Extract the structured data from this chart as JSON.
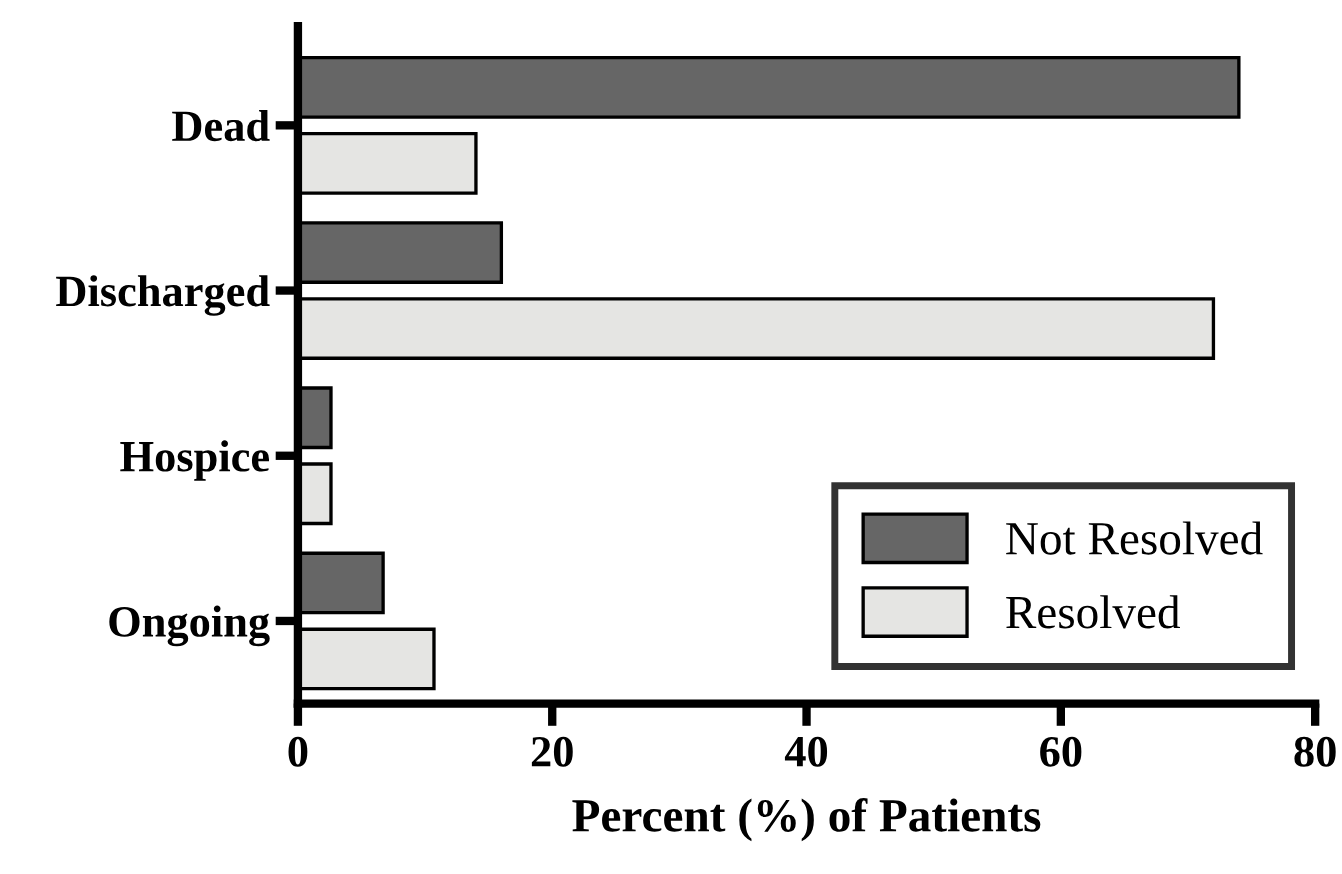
{
  "chart_data": {
    "type": "bar",
    "orientation": "horizontal",
    "xlabel": "Percent (%) of Patients",
    "categories": [
      "Dead",
      "Discharged",
      "Hospice",
      "Ongoing"
    ],
    "series": [
      {
        "name": "Not Resolved",
        "color": "#666666",
        "values": [
          74,
          16,
          2.6,
          6.7
        ]
      },
      {
        "name": "Resolved",
        "color": "#e5e5e3",
        "values": [
          14,
          72,
          2.6,
          10.7
        ]
      }
    ],
    "xlim": [
      0,
      80
    ],
    "xticks": [
      0,
      20,
      40,
      60,
      80
    ],
    "grid": false,
    "legend": "bottom right"
  }
}
